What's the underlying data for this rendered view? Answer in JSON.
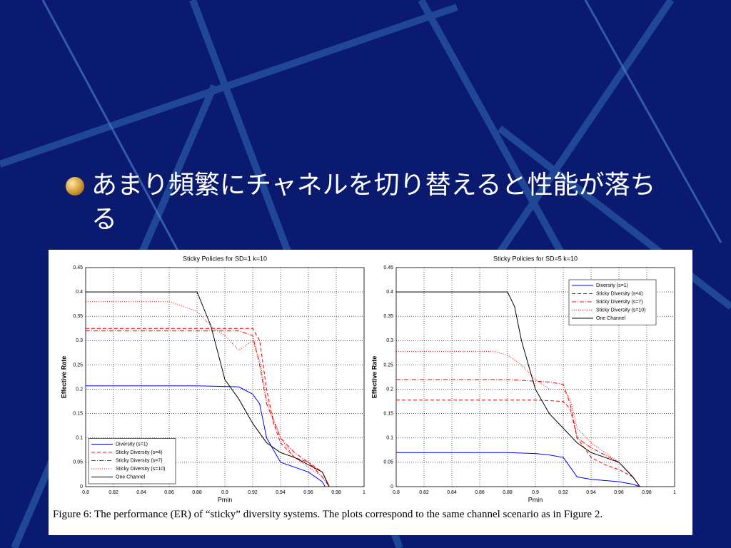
{
  "bullet": "あまり頻繁にチャネルを切り替えると性能が落ちる",
  "caption": "Figure 6: The performance (ER) of “sticky” diversity systems. The plots correspond to the same channel scenario as in Figure 2.",
  "chart_data": [
    {
      "type": "line",
      "title": "Sticky Policies for SD=1   k=10",
      "x_label": "Pmin",
      "y_label": "Effective Rate",
      "xlim": [
        0.8,
        1
      ],
      "ylim": [
        0,
        0.45
      ],
      "grid": true,
      "legend": "lower left",
      "xticks": [
        0.8,
        0.82,
        0.84,
        0.86,
        0.88,
        0.9,
        0.92,
        0.94,
        0.96,
        0.98,
        1
      ],
      "yticks": [
        0,
        0.05,
        0.1,
        0.15,
        0.2,
        0.25,
        0.3,
        0.35,
        0.4,
        0.45
      ],
      "series": [
        {
          "name": "Diversity (s=1)",
          "color": "#0000ff",
          "style": "solid",
          "x": [
            0.8,
            0.88,
            0.91,
            0.92,
            0.925,
            0.93,
            0.94,
            0.95,
            0.96,
            0.97,
            0.972
          ],
          "values": [
            0.207,
            0.207,
            0.205,
            0.19,
            0.17,
            0.1,
            0.05,
            0.04,
            0.03,
            0.01,
            0
          ]
        },
        {
          "name": "Sticky Diversity (s=4)",
          "color": "#ff0000",
          "style": "dashed",
          "x": [
            0.8,
            0.92,
            0.925,
            0.93,
            0.935,
            0.94,
            0.95,
            0.96,
            0.97,
            0.975
          ],
          "values": [
            0.325,
            0.325,
            0.3,
            0.2,
            0.13,
            0.09,
            0.06,
            0.05,
            0.03,
            0
          ]
        },
        {
          "name": "Sticky Diversity (s=7)",
          "color": "#ff0000",
          "style": "dashdot",
          "x": [
            0.8,
            0.89,
            0.91,
            0.92,
            0.925,
            0.93,
            0.94,
            0.95,
            0.96,
            0.97,
            0.975
          ],
          "values": [
            0.32,
            0.32,
            0.32,
            0.31,
            0.25,
            0.17,
            0.1,
            0.07,
            0.05,
            0.02,
            0
          ]
        },
        {
          "name": "Sticky Diversity (s=10)",
          "color": "#ff0000",
          "style": "dotted",
          "x": [
            0.8,
            0.86,
            0.87,
            0.88,
            0.89,
            0.9,
            0.91,
            0.92,
            0.925,
            0.93,
            0.94,
            0.95,
            0.96,
            0.97,
            0.975
          ],
          "values": [
            0.38,
            0.38,
            0.37,
            0.36,
            0.33,
            0.31,
            0.28,
            0.3,
            0.26,
            0.18,
            0.1,
            0.06,
            0.04,
            0.02,
            0
          ]
        },
        {
          "name": "One Channel",
          "color": "#000000",
          "style": "solid",
          "x": [
            0.8,
            0.88,
            0.89,
            0.9,
            0.91,
            0.92,
            0.93,
            0.94,
            0.95,
            0.96,
            0.97,
            0.975
          ],
          "values": [
            0.4,
            0.4,
            0.33,
            0.22,
            0.18,
            0.13,
            0.09,
            0.07,
            0.06,
            0.045,
            0.03,
            0
          ]
        }
      ]
    },
    {
      "type": "line",
      "title": "Sticky Policies for SD=5   k=10",
      "x_label": "Pmin",
      "y_label": "Effective Rate",
      "xlim": [
        0.8,
        1
      ],
      "ylim": [
        0,
        0.45
      ],
      "grid": true,
      "legend": "upper right",
      "xticks": [
        0.8,
        0.82,
        0.84,
        0.86,
        0.88,
        0.9,
        0.92,
        0.94,
        0.96,
        0.98,
        1
      ],
      "yticks": [
        0,
        0.05,
        0.1,
        0.15,
        0.2,
        0.25,
        0.3,
        0.35,
        0.4,
        0.45
      ],
      "series": [
        {
          "name": "Diversity (s=1)",
          "color": "#0000ff",
          "style": "solid",
          "x": [
            0.8,
            0.88,
            0.9,
            0.91,
            0.92,
            0.925,
            0.93,
            0.94,
            0.96,
            0.97,
            0.975
          ],
          "values": [
            0.07,
            0.07,
            0.068,
            0.065,
            0.06,
            0.04,
            0.02,
            0.015,
            0.01,
            0.005,
            0
          ]
        },
        {
          "name": "Sticky Diversity (s=4)",
          "color": "#ff0000",
          "style": "dashed",
          "x": [
            0.8,
            0.9,
            0.92,
            0.925,
            0.93,
            0.94,
            0.95,
            0.96,
            0.97,
            0.975
          ],
          "values": [
            0.178,
            0.178,
            0.175,
            0.16,
            0.1,
            0.06,
            0.045,
            0.035,
            0.02,
            0
          ]
        },
        {
          "name": "Sticky Diversity (s=7)",
          "color": "#ff0000",
          "style": "dashdot",
          "x": [
            0.8,
            0.88,
            0.91,
            0.92,
            0.925,
            0.93,
            0.94,
            0.95,
            0.96,
            0.97,
            0.975
          ],
          "values": [
            0.22,
            0.22,
            0.215,
            0.21,
            0.17,
            0.1,
            0.08,
            0.065,
            0.05,
            0.02,
            0
          ]
        },
        {
          "name": "Sticky Diversity (s=10)",
          "color": "#ff0000",
          "style": "dotted",
          "x": [
            0.8,
            0.87,
            0.88,
            0.89,
            0.9,
            0.91,
            0.92,
            0.925,
            0.93,
            0.94,
            0.95,
            0.96,
            0.97,
            0.975
          ],
          "values": [
            0.278,
            0.278,
            0.27,
            0.25,
            0.22,
            0.2,
            0.2,
            0.18,
            0.12,
            0.09,
            0.07,
            0.05,
            0.02,
            0
          ]
        },
        {
          "name": "One Channel",
          "color": "#000000",
          "style": "solid",
          "x": [
            0.8,
            0.88,
            0.885,
            0.89,
            0.9,
            0.91,
            0.92,
            0.93,
            0.94,
            0.95,
            0.96,
            0.97,
            0.975
          ],
          "values": [
            0.4,
            0.4,
            0.37,
            0.3,
            0.2,
            0.15,
            0.12,
            0.09,
            0.07,
            0.06,
            0.05,
            0.02,
            0
          ]
        }
      ]
    }
  ]
}
